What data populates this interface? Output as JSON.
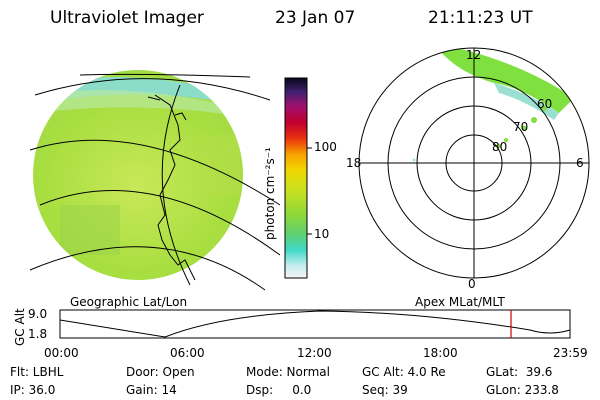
{
  "header": {
    "instrument": "Ultraviolet Imager",
    "date": "23 Jan 07",
    "time": "21:11:23 UT"
  },
  "geo_panel": {
    "label": "Geographic Lat/Lon"
  },
  "polar_panel": {
    "label": "Apex MLat/MLT",
    "mlt_labels": {
      "top": "12",
      "left": "18",
      "right": "6",
      "bottom": "0"
    },
    "lat_labels": [
      "60",
      "70",
      "80"
    ]
  },
  "colorbar": {
    "label": "photon cm⁻²s⁻¹",
    "ticks": [
      "100",
      "10"
    ],
    "scale": "log"
  },
  "altitude_plot": {
    "ylabel": "GC Alt",
    "yticks": [
      "9.0",
      "1.8"
    ],
    "xticks": [
      "00:00",
      "06:00",
      "12:00",
      "18:00",
      "23:59"
    ],
    "current_time_marker_color": "#cc0000"
  },
  "info": {
    "flt": "Flt: LBHL",
    "ip": "IP: 36.0",
    "door": "Door: Open",
    "gain": "Gain: 14",
    "mode": "Mode: Normal",
    "dsp": "Dsp:     0.0",
    "gcalt": "GC Alt: 4.0 Re",
    "seq": "Seq: 39",
    "glat": "GLat:  39.6",
    "glon": "GLon: 233.8"
  },
  "colors": {
    "disk_main": "#a8e040",
    "disk_light": "#c6e860",
    "limb_cyan": "#80dcd8",
    "polar_green": "#7fe040"
  }
}
